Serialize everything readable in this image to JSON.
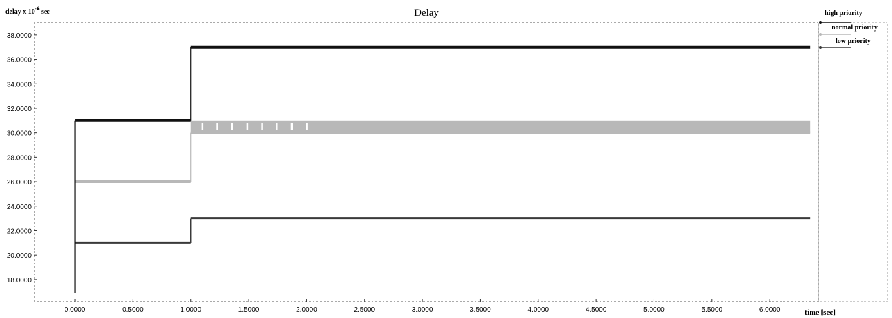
{
  "chart_data": {
    "type": "line",
    "title": "Delay",
    "ylabel_prefix": "delay x 10",
    "ylabel_exp": "-6",
    "ylabel_suffix": " sec",
    "xlabel": "time [sec]",
    "xlim": [
      -0.35,
      6.42
    ],
    "ylim": [
      16.2,
      39.0
    ],
    "x_ticks": [
      "0.0000",
      "0.5000",
      "1.0000",
      "1.5000",
      "2.0000",
      "2.5000",
      "3.0000",
      "3.5000",
      "4.0000",
      "4.5000",
      "5.0000",
      "5.5000",
      "6.0000"
    ],
    "y_ticks": [
      "18.0000",
      "20.0000",
      "22.0000",
      "24.0000",
      "26.0000",
      "28.0000",
      "30.0000",
      "32.0000",
      "34.0000",
      "36.0000",
      "38.0000"
    ],
    "grid": false,
    "legend_position": "right",
    "series": [
      {
        "name": "high priority",
        "color": "#111111",
        "points": [
          [
            0.0,
            16.9
          ],
          [
            0.0,
            31.0
          ],
          [
            1.0,
            31.0
          ],
          [
            1.0,
            37.0
          ],
          [
            6.35,
            37.0
          ]
        ]
      },
      {
        "name": "normal priority",
        "color": "#b8b8b8",
        "points": [
          [
            0.0,
            26.0
          ],
          [
            1.0,
            26.0
          ],
          [
            1.0,
            30.0
          ],
          [
            6.35,
            30.0
          ]
        ],
        "oscillation_band": [
          30.0,
          31.0
        ],
        "oscillation_xrange": [
          1.0,
          6.35
        ]
      },
      {
        "name": "low priority",
        "color": "#3a3a3a",
        "points": [
          [
            0.0,
            21.0
          ],
          [
            1.0,
            21.0
          ],
          [
            1.0,
            23.0
          ],
          [
            6.35,
            23.0
          ]
        ]
      }
    ]
  }
}
